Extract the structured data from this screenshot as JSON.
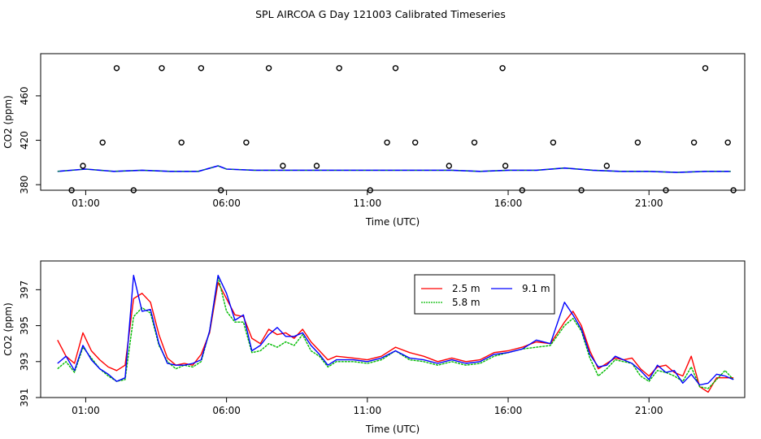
{
  "title": "SPL AIRCOA G  Day 121003  Calibrated Timeseries",
  "colors": {
    "s1": "#ff0000",
    "s2": "#00bb00",
    "s3": "#0000ff",
    "frame": "#000000"
  },
  "chart_data": [
    {
      "type": "line",
      "panel": "top",
      "xlabel": "Time (UTC)",
      "ylabel": "CO2 (ppm)",
      "xlim": [
        -0.6,
        24.4
      ],
      "ylim": [
        375,
        498
      ],
      "xticks": [
        1,
        6,
        11,
        16,
        21
      ],
      "xtick_labels": [
        "01:00",
        "06:00",
        "11:00",
        "16:00",
        "21:00"
      ],
      "yticks": [
        380,
        420,
        460
      ],
      "ytick_labels": [
        "380",
        "420",
        "460"
      ],
      "line_series": [
        {
          "name": "co2-line",
          "x": [
            0,
            1,
            2,
            3,
            4,
            5,
            5.7,
            6,
            7,
            8,
            9,
            10,
            11,
            12,
            13,
            14,
            15,
            16,
            17,
            18,
            19,
            20,
            21,
            22,
            23,
            23.9
          ],
          "y": [
            392,
            394,
            392,
            393,
            392,
            392,
            397,
            394,
            393,
            393,
            393,
            393,
            393,
            393,
            393,
            393,
            392,
            393,
            393,
            395,
            393,
            392,
            392,
            391,
            392,
            392
          ]
        }
      ],
      "scatter_x": [
        0.5,
        0.9,
        1.6,
        2.1,
        2.7,
        3.7,
        4.4,
        5.1,
        5.8,
        6.7,
        7.5,
        8.0,
        9.2,
        10.0,
        11.1,
        11.7,
        12.0,
        12.7,
        13.9,
        14.8,
        15.8,
        15.9,
        16.5,
        17.6,
        18.6,
        19.5,
        20.6,
        21.6,
        22.6,
        23.0,
        23.8,
        24.0
      ],
      "scatter_y": [
        375,
        397,
        418,
        485,
        375,
        485,
        418,
        485,
        375,
        418,
        485,
        397,
        397,
        485,
        375,
        418,
        485,
        418,
        397,
        418,
        485,
        397,
        375,
        418,
        375,
        397,
        418,
        375,
        418,
        485,
        418,
        375
      ]
    },
    {
      "type": "line",
      "panel": "bottom",
      "xlabel": "Time (UTC)",
      "ylabel": "CO2 (ppm)",
      "xlim": [
        -0.6,
        24.4
      ],
      "ylim": [
        391,
        398.6
      ],
      "xticks": [
        1,
        6,
        11,
        16,
        21
      ],
      "xtick_labels": [
        "01:00",
        "06:00",
        "11:00",
        "16:00",
        "21:00"
      ],
      "yticks": [
        391,
        393,
        395,
        397
      ],
      "ytick_labels": [
        "391",
        "393",
        "395",
        "397"
      ],
      "legend": [
        "2.5 m",
        "5.8 m",
        "9.1 m"
      ],
      "series": [
        {
          "name": "2.5 m",
          "x": [
            0,
            0.3,
            0.6,
            0.9,
            1.2,
            1.5,
            1.8,
            2.1,
            2.4,
            2.7,
            3.0,
            3.3,
            3.6,
            3.9,
            4.2,
            4.5,
            4.8,
            5.1,
            5.4,
            5.7,
            6.0,
            6.3,
            6.6,
            6.9,
            7.2,
            7.5,
            7.8,
            8.1,
            8.4,
            8.7,
            9.0,
            9.3,
            9.6,
            9.9,
            10.5,
            11.0,
            11.5,
            12.0,
            12.5,
            13.0,
            13.5,
            14.0,
            14.5,
            15.0,
            15.5,
            16.0,
            16.5,
            17.0,
            17.5,
            18.0,
            18.3,
            18.6,
            18.9,
            19.2,
            19.5,
            19.8,
            20.1,
            20.4,
            20.7,
            21.0,
            21.3,
            21.6,
            21.9,
            22.2,
            22.5,
            22.8,
            23.1,
            23.4,
            23.7,
            24.0
          ],
          "y": [
            394.2,
            393.3,
            392.9,
            394.6,
            393.6,
            393.1,
            392.7,
            392.5,
            392.8,
            396.5,
            396.8,
            396.3,
            394.5,
            393.2,
            392.8,
            392.9,
            392.8,
            393.4,
            394.6,
            397.4,
            396.5,
            395.6,
            395.5,
            394.3,
            394.0,
            394.8,
            394.5,
            394.6,
            394.3,
            394.8,
            394.1,
            393.6,
            393.1,
            393.3,
            393.2,
            393.1,
            393.3,
            393.8,
            393.5,
            393.3,
            393.0,
            393.2,
            393.0,
            393.1,
            393.5,
            393.6,
            393.8,
            394.1,
            394.0,
            395.2,
            395.8,
            395.0,
            393.6,
            392.6,
            392.9,
            393.2,
            393.1,
            393.2,
            392.6,
            392.2,
            392.7,
            392.8,
            392.4,
            392.2,
            393.3,
            391.6,
            391.3,
            392.1,
            392.1,
            392.1
          ]
        },
        {
          "name": "5.8 m",
          "x": [
            0,
            0.3,
            0.6,
            0.9,
            1.2,
            1.5,
            1.8,
            2.1,
            2.4,
            2.7,
            3.0,
            3.3,
            3.6,
            3.9,
            4.2,
            4.5,
            4.8,
            5.1,
            5.4,
            5.7,
            6.0,
            6.3,
            6.6,
            6.9,
            7.2,
            7.5,
            7.8,
            8.1,
            8.4,
            8.7,
            9.0,
            9.3,
            9.6,
            9.9,
            10.5,
            11.0,
            11.5,
            12.0,
            12.5,
            13.0,
            13.5,
            14.0,
            14.5,
            15.0,
            15.5,
            16.0,
            16.5,
            17.0,
            17.5,
            18.0,
            18.3,
            18.6,
            18.9,
            19.2,
            19.5,
            19.8,
            20.1,
            20.4,
            20.7,
            21.0,
            21.3,
            21.6,
            21.9,
            22.2,
            22.5,
            22.8,
            23.1,
            23.4,
            23.7,
            24.0
          ],
          "y": [
            392.6,
            393.0,
            392.4,
            393.8,
            393.2,
            392.6,
            392.2,
            391.9,
            392.0,
            395.5,
            396.0,
            395.7,
            393.9,
            393.0,
            392.6,
            392.8,
            392.7,
            393.0,
            394.7,
            397.7,
            395.8,
            395.2,
            395.2,
            393.5,
            393.6,
            394.0,
            393.8,
            394.1,
            393.9,
            394.5,
            393.6,
            393.3,
            392.7,
            393.0,
            393.0,
            392.9,
            393.1,
            393.6,
            393.1,
            393.0,
            392.8,
            393.0,
            392.8,
            392.9,
            393.3,
            393.5,
            393.7,
            393.8,
            393.9,
            395.0,
            395.4,
            394.7,
            393.2,
            392.2,
            392.6,
            393.1,
            393.0,
            392.9,
            392.2,
            391.9,
            392.5,
            392.4,
            392.2,
            391.9,
            392.7,
            391.6,
            391.5,
            392.0,
            392.5,
            392.0
          ]
        },
        {
          "name": "9.1 m",
          "x": [
            0,
            0.3,
            0.6,
            0.9,
            1.2,
            1.5,
            1.8,
            2.1,
            2.4,
            2.7,
            3.0,
            3.3,
            3.6,
            3.9,
            4.2,
            4.5,
            4.8,
            5.1,
            5.4,
            5.7,
            6.0,
            6.3,
            6.6,
            6.9,
            7.2,
            7.5,
            7.8,
            8.1,
            8.4,
            8.7,
            9.0,
            9.3,
            9.6,
            9.9,
            10.5,
            11.0,
            11.5,
            12.0,
            12.5,
            13.0,
            13.5,
            14.0,
            14.5,
            15.0,
            15.5,
            16.0,
            16.5,
            17.0,
            17.5,
            18.0,
            18.3,
            18.6,
            18.9,
            19.2,
            19.5,
            19.8,
            20.1,
            20.4,
            20.7,
            21.0,
            21.3,
            21.6,
            21.9,
            22.2,
            22.5,
            22.8,
            23.1,
            23.4,
            23.7,
            24.0
          ],
          "y": [
            392.9,
            393.3,
            392.5,
            393.9,
            393.1,
            392.6,
            392.3,
            391.9,
            392.1,
            397.8,
            395.8,
            395.9,
            394.0,
            392.9,
            392.8,
            392.8,
            392.9,
            393.1,
            394.7,
            397.8,
            396.8,
            395.3,
            395.6,
            393.6,
            393.9,
            394.5,
            394.9,
            394.4,
            394.4,
            394.6,
            393.9,
            393.4,
            392.8,
            393.1,
            393.1,
            393.0,
            393.2,
            393.6,
            393.2,
            393.1,
            392.9,
            393.1,
            392.9,
            393.0,
            393.4,
            393.5,
            393.7,
            394.2,
            394.0,
            396.3,
            395.6,
            394.8,
            393.4,
            392.7,
            392.8,
            393.3,
            393.1,
            392.9,
            392.5,
            392.0,
            392.8,
            392.4,
            392.5,
            391.8,
            392.3,
            391.7,
            391.8,
            392.3,
            392.2,
            392.0
          ]
        }
      ]
    }
  ]
}
